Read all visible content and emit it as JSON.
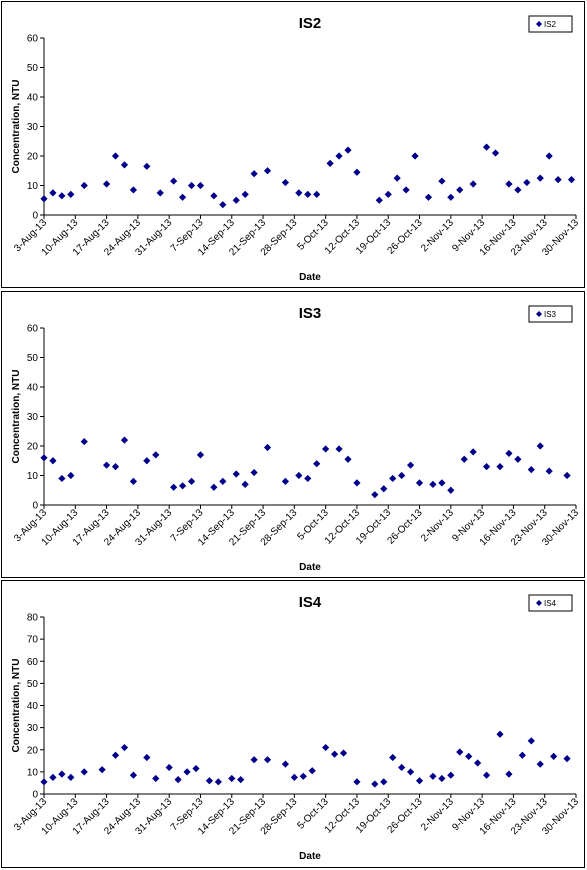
{
  "chart_data": [
    {
      "type": "scatter",
      "title": "IS2",
      "xlabel": "Date",
      "ylabel": "Concentration, NTU",
      "ylim": [
        0,
        60
      ],
      "yticks": [
        0,
        10,
        20,
        30,
        40,
        50,
        60
      ],
      "xlim": [
        "2013-08-03",
        "2013-11-30"
      ],
      "xtick_labels": [
        "3-Aug-13",
        "10-Aug-13",
        "17-Aug-13",
        "24-Aug-13",
        "31-Aug-13",
        "7-Sep-13",
        "14-Sep-13",
        "21-Sep-13",
        "28-Sep-13",
        "5-Oct-13",
        "12-Oct-13",
        "19-Oct-13",
        "26-Oct-13",
        "2-Nov-13",
        "9-Nov-13",
        "16-Nov-13",
        "23-Nov-13",
        "30-Nov-13"
      ],
      "legend": "top-right",
      "grid": false,
      "series": [
        {
          "name": "IS2",
          "color": "#00008b",
          "x": [
            "2013-08-03",
            "2013-08-05",
            "2013-08-07",
            "2013-08-09",
            "2013-08-12",
            "2013-08-17",
            "2013-08-19",
            "2013-08-21",
            "2013-08-23",
            "2013-08-26",
            "2013-08-29",
            "2013-09-01",
            "2013-09-03",
            "2013-09-05",
            "2013-09-07",
            "2013-09-10",
            "2013-09-12",
            "2013-09-15",
            "2013-09-17",
            "2013-09-19",
            "2013-09-22",
            "2013-09-26",
            "2013-09-29",
            "2013-10-01",
            "2013-10-03",
            "2013-10-06",
            "2013-10-08",
            "2013-10-10",
            "2013-10-12",
            "2013-10-17",
            "2013-10-19",
            "2013-10-21",
            "2013-10-23",
            "2013-10-25",
            "2013-10-28",
            "2013-10-31",
            "2013-11-02",
            "2013-11-04",
            "2013-11-07",
            "2013-11-10",
            "2013-11-12",
            "2013-11-15",
            "2013-11-17",
            "2013-11-19",
            "2013-11-22",
            "2013-11-24",
            "2013-11-26",
            "2013-11-29",
            "2013-12-01",
            "2013-12-03"
          ],
          "y": [
            5.5,
            7.5,
            6.5,
            7,
            10,
            10.5,
            20,
            17,
            8.5,
            16.5,
            7.5,
            11.5,
            6,
            10,
            10,
            6.5,
            3.5,
            5,
            7,
            14,
            15,
            11,
            7.5,
            7,
            7,
            17.5,
            20,
            22,
            14.5,
            5,
            7,
            12.5,
            8.5,
            20,
            6,
            11.5,
            6,
            8.5,
            10.5,
            23,
            21,
            10.5,
            8.5,
            11,
            12.5,
            20,
            12,
            12,
            10,
            6
          ]
        }
      ]
    },
    {
      "type": "scatter",
      "title": "IS3",
      "xlabel": "Date",
      "ylabel": "Concentration, NTU",
      "ylim": [
        0,
        60
      ],
      "yticks": [
        0,
        10,
        20,
        30,
        40,
        50,
        60
      ],
      "xlim": [
        "2013-08-03",
        "2013-11-30"
      ],
      "xtick_labels": [
        "3-Aug-13",
        "10-Aug-13",
        "17-Aug-13",
        "24-Aug-13",
        "31-Aug-13",
        "7-Sep-13",
        "14-Sep-13",
        "21-Sep-13",
        "28-Sep-13",
        "5-Oct-13",
        "12-Oct-13",
        "19-Oct-13",
        "26-Oct-13",
        "2-Nov-13",
        "9-Nov-13",
        "16-Nov-13",
        "23-Nov-13",
        "30-Nov-13"
      ],
      "legend": "top-right",
      "grid": false,
      "series": [
        {
          "name": "IS3",
          "color": "#00008b",
          "x": [
            "2013-08-03",
            "2013-08-05",
            "2013-08-07",
            "2013-08-09",
            "2013-08-12",
            "2013-08-17",
            "2013-08-19",
            "2013-08-21",
            "2013-08-23",
            "2013-08-26",
            "2013-08-28",
            "2013-09-01",
            "2013-09-03",
            "2013-09-05",
            "2013-09-07",
            "2013-09-10",
            "2013-09-12",
            "2013-09-15",
            "2013-09-17",
            "2013-09-19",
            "2013-09-22",
            "2013-09-26",
            "2013-09-29",
            "2013-10-01",
            "2013-10-03",
            "2013-10-05",
            "2013-10-08",
            "2013-10-10",
            "2013-10-12",
            "2013-10-16",
            "2013-10-18",
            "2013-10-20",
            "2013-10-22",
            "2013-10-24",
            "2013-10-26",
            "2013-10-29",
            "2013-10-31",
            "2013-11-02",
            "2013-11-05",
            "2013-11-07",
            "2013-11-10",
            "2013-11-13",
            "2013-11-15",
            "2013-11-17",
            "2013-11-20",
            "2013-11-22",
            "2013-11-24",
            "2013-11-28",
            "2013-11-30",
            "2013-12-02"
          ],
          "y": [
            16,
            15,
            9,
            10,
            21.5,
            13.5,
            13,
            22,
            8,
            15,
            17,
            6,
            6.5,
            8,
            17,
            6,
            8,
            10.5,
            7,
            11,
            19.5,
            8,
            10,
            9,
            14,
            19,
            19,
            15.5,
            7.5,
            3.5,
            5.5,
            9,
            10,
            13.5,
            7.5,
            7,
            7.5,
            5,
            15.5,
            18,
            13,
            13,
            17.5,
            15.5,
            12,
            20,
            11.5,
            10,
            12.5,
            8
          ]
        }
      ]
    },
    {
      "type": "scatter",
      "title": "IS4",
      "xlabel": "Date",
      "ylabel": "Concentration, NTU",
      "ylim": [
        0,
        80
      ],
      "yticks": [
        0,
        10,
        20,
        30,
        40,
        50,
        60,
        70,
        80
      ],
      "xlim": [
        "2013-08-03",
        "2013-11-30"
      ],
      "xtick_labels": [
        "3-Aug-13",
        "10-Aug-13",
        "17-Aug-13",
        "24-Aug-13",
        "31-Aug-13",
        "7-Sep-13",
        "14-Sep-13",
        "21-Sep-13",
        "28-Sep-13",
        "5-Oct-13",
        "12-Oct-13",
        "19-Oct-13",
        "26-Oct-13",
        "2-Nov-13",
        "9-Nov-13",
        "16-Nov-13",
        "23-Nov-13",
        "30-Nov-13"
      ],
      "legend": "top-right",
      "grid": false,
      "series": [
        {
          "name": "IS4",
          "color": "#00008b",
          "x": [
            "2013-08-03",
            "2013-08-05",
            "2013-08-07",
            "2013-08-09",
            "2013-08-12",
            "2013-08-16",
            "2013-08-19",
            "2013-08-21",
            "2013-08-23",
            "2013-08-26",
            "2013-08-28",
            "2013-08-31",
            "2013-09-02",
            "2013-09-04",
            "2013-09-06",
            "2013-09-09",
            "2013-09-11",
            "2013-09-14",
            "2013-09-16",
            "2013-09-19",
            "2013-09-22",
            "2013-09-26",
            "2013-09-28",
            "2013-09-30",
            "2013-10-02",
            "2013-10-05",
            "2013-10-07",
            "2013-10-09",
            "2013-10-12",
            "2013-10-16",
            "2013-10-18",
            "2013-10-20",
            "2013-10-22",
            "2013-10-24",
            "2013-10-26",
            "2013-10-29",
            "2013-10-31",
            "2013-11-02",
            "2013-11-04",
            "2013-11-06",
            "2013-11-08",
            "2013-11-10",
            "2013-11-13",
            "2013-11-15",
            "2013-11-18",
            "2013-11-20",
            "2013-11-22",
            "2013-11-25",
            "2013-11-28",
            "2013-11-30",
            "2013-12-02"
          ],
          "y": [
            5.5,
            7.5,
            9,
            7.5,
            10,
            11,
            17.5,
            21,
            8.5,
            16.5,
            7,
            12,
            6.5,
            10,
            11.5,
            6,
            5.5,
            7,
            6.5,
            15.5,
            15.5,
            13.5,
            7.5,
            8,
            10.5,
            21,
            18,
            18.5,
            5.5,
            4.5,
            5.5,
            16.5,
            12,
            10,
            6,
            8,
            7,
            8.5,
            19,
            17,
            14,
            8.5,
            27,
            9,
            17.5,
            24,
            13.5,
            17,
            16,
            11.5,
            11.5
          ]
        }
      ]
    }
  ]
}
